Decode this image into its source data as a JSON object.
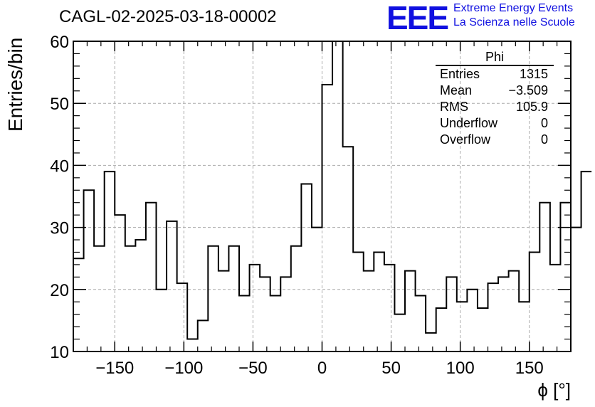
{
  "header": {
    "title": "CAGL-02-2025-03-18-00002",
    "logo_text": "EEE",
    "logo_line1": "Extreme Energy Events",
    "logo_line2": "La Scienza nelle Scuole"
  },
  "stats": {
    "title": "Phi",
    "rows": [
      {
        "label": "Entries",
        "value": "1315"
      },
      {
        "label": "Mean",
        "value": "−3.509"
      },
      {
        "label": "RMS",
        "value": "105.9"
      },
      {
        "label": "Underflow",
        "value": "0"
      },
      {
        "label": "Overflow",
        "value": "0"
      }
    ]
  },
  "colors": {
    "line": "#000000",
    "grid": "#aaaaaa",
    "logo": "#1010e0"
  },
  "chart_data": {
    "type": "histogram",
    "title": "CAGL-02-2025-03-18-00002",
    "xlabel": "ϕ [°]",
    "ylabel": "Entries/bin",
    "xlim": [
      -180,
      180
    ],
    "ylim": [
      10,
      60
    ],
    "grid": true,
    "bin_width": 7.5,
    "x_ticks": [
      -150,
      -100,
      -50,
      0,
      50,
      100,
      150
    ],
    "x_tick_labels": [
      "−150",
      "−100",
      "−50",
      "0",
      "50",
      "100",
      "150"
    ],
    "y_ticks": [
      10,
      20,
      30,
      40,
      50,
      60
    ],
    "values": [
      25,
      36,
      27,
      39,
      32,
      27,
      28,
      34,
      20,
      31,
      21,
      12,
      15,
      27,
      23,
      27,
      19,
      24,
      22,
      19,
      22,
      27,
      37,
      30,
      53,
      60,
      43,
      26,
      23,
      26,
      24,
      16,
      23,
      19,
      13,
      17,
      22,
      18,
      20,
      17,
      21,
      22,
      23,
      18,
      26,
      34,
      24,
      34,
      30,
      39
    ]
  }
}
